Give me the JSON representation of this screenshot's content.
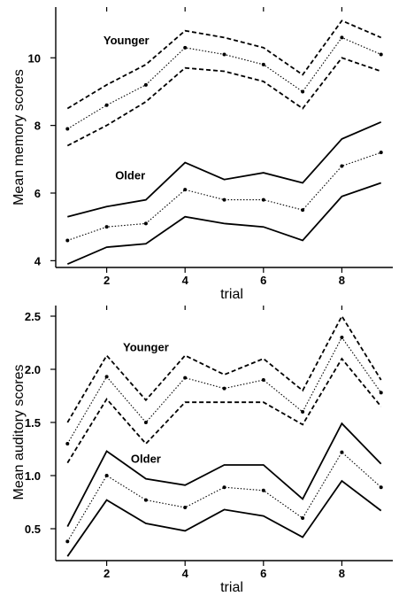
{
  "chart_data": [
    {
      "type": "line",
      "xlabel": "trial",
      "ylabel": "Mean memory scores",
      "xlim": [
        0.7,
        9.3
      ],
      "ylim": [
        3.8,
        11.5
      ],
      "xticks": [
        2,
        4,
        6,
        8
      ],
      "yticks": [
        4,
        6,
        8,
        10
      ],
      "x": [
        1,
        2,
        3,
        4,
        5,
        6,
        7,
        8,
        9
      ],
      "grid": false,
      "annotations": [
        {
          "text": "Younger",
          "x": 2.5,
          "y": 10.4
        },
        {
          "text": "Older",
          "x": 2.6,
          "y": 6.4
        }
      ],
      "series": [
        {
          "group": "Younger",
          "stat": "upper",
          "style": "dashed",
          "color": "#000000",
          "values": [
            8.5,
            9.2,
            9.8,
            10.8,
            10.6,
            10.3,
            9.5,
            11.1,
            10.6
          ]
        },
        {
          "group": "Younger",
          "stat": "mean",
          "style": "dotted",
          "color": "#000000",
          "values": [
            7.9,
            8.6,
            9.2,
            10.3,
            10.1,
            9.8,
            9.0,
            10.6,
            10.1
          ]
        },
        {
          "group": "Younger",
          "stat": "lower",
          "style": "dashed",
          "color": "#000000",
          "values": [
            7.4,
            8.0,
            8.7,
            9.7,
            9.6,
            9.3,
            8.5,
            10.0,
            9.6
          ]
        },
        {
          "group": "Older",
          "stat": "upper",
          "style": "solid",
          "color": "#000000",
          "values": [
            5.3,
            5.6,
            5.8,
            6.9,
            6.4,
            6.6,
            6.3,
            7.6,
            8.1
          ]
        },
        {
          "group": "Older",
          "stat": "mean",
          "style": "dotted",
          "color": "#000000",
          "values": [
            4.6,
            5.0,
            5.1,
            6.1,
            5.8,
            5.8,
            5.5,
            6.8,
            7.2
          ]
        },
        {
          "group": "Older",
          "stat": "lower",
          "style": "solid",
          "color": "#000000",
          "values": [
            3.9,
            4.4,
            4.5,
            5.3,
            5.1,
            5.0,
            4.6,
            5.9,
            6.3
          ]
        }
      ]
    },
    {
      "type": "line",
      "xlabel": "trial",
      "ylabel": "Mean auditory scores",
      "xlim": [
        0.7,
        9.3
      ],
      "ylim": [
        0.2,
        2.6
      ],
      "xticks": [
        2,
        4,
        6,
        8
      ],
      "yticks": [
        0.5,
        1.0,
        1.5,
        2.0,
        2.5
      ],
      "ytick_labels": [
        "0.5",
        "1.0",
        "1.5",
        "2.0",
        "2.5"
      ],
      "x": [
        1,
        2,
        3,
        4,
        5,
        6,
        7,
        8,
        9
      ],
      "grid": false,
      "annotations": [
        {
          "text": "Younger",
          "x": 3.0,
          "y": 2.17
        },
        {
          "text": "Older",
          "x": 3.0,
          "y": 1.12
        }
      ],
      "series": [
        {
          "group": "Younger",
          "stat": "upper",
          "style": "dashed",
          "color": "#000000",
          "values": [
            1.5,
            2.13,
            1.71,
            2.13,
            1.95,
            2.1,
            1.8,
            2.5,
            1.9
          ]
        },
        {
          "group": "Younger",
          "stat": "mean",
          "style": "dotted",
          "color": "#000000",
          "values": [
            1.3,
            1.93,
            1.5,
            1.92,
            1.82,
            1.9,
            1.6,
            2.3,
            1.78
          ]
        },
        {
          "group": "Younger",
          "stat": "lower",
          "style": "dashed",
          "color": "#000000",
          "values": [
            1.12,
            1.72,
            1.3,
            1.69,
            1.69,
            1.69,
            1.48,
            2.1,
            1.65
          ]
        },
        {
          "group": "Older",
          "stat": "upper",
          "style": "solid",
          "color": "#000000",
          "values": [
            0.52,
            1.23,
            0.97,
            0.91,
            1.1,
            1.1,
            0.78,
            1.49,
            1.11
          ]
        },
        {
          "group": "Older",
          "stat": "mean",
          "style": "dotted",
          "color": "#000000",
          "values": [
            0.38,
            1.0,
            0.77,
            0.7,
            0.89,
            0.86,
            0.6,
            1.22,
            0.89
          ]
        },
        {
          "group": "Older",
          "stat": "lower",
          "style": "solid",
          "color": "#000000",
          "values": [
            0.24,
            0.77,
            0.55,
            0.48,
            0.68,
            0.62,
            0.42,
            0.95,
            0.67
          ]
        }
      ]
    }
  ]
}
